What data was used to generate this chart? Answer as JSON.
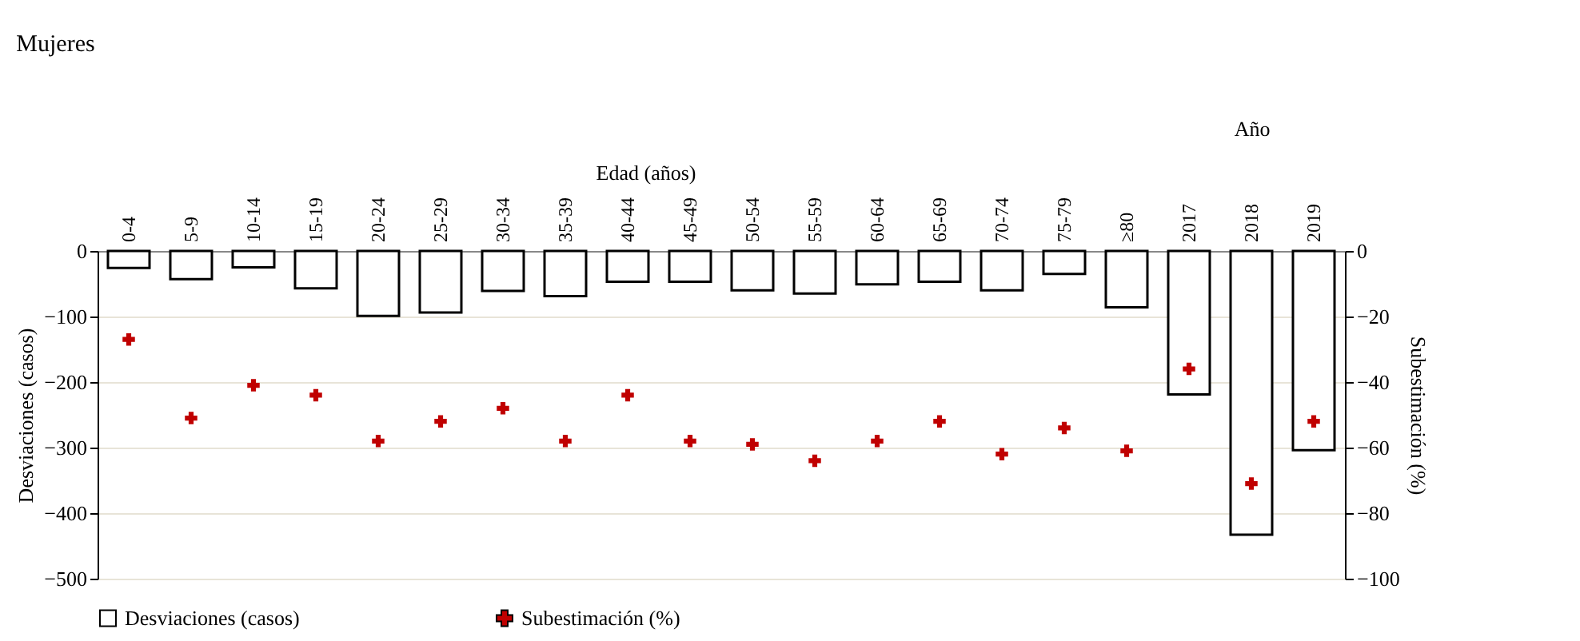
{
  "chart_data": {
    "type": "bar",
    "title": "Mujeres",
    "ylabel": "Desviaciones (casos)",
    "y2label": "Subestimación (%)",
    "categories": [
      "0-4",
      "5-9",
      "10-14",
      "15-19",
      "20-24",
      "25-29",
      "30-34",
      "35-39",
      "40-44",
      "45-49",
      "50-54",
      "55-59",
      "60-64",
      "65-69",
      "70-74",
      "75-79",
      "≥80",
      "2017",
      "2018",
      "2019"
    ],
    "series": [
      {
        "name": "Desviaciones (casos)",
        "color": "#ffffff",
        "values": [
          -26,
          -43,
          -25,
          -57,
          -99,
          -94,
          -61,
          -69,
          -47,
          -47,
          -60,
          -65,
          -51,
          -47,
          -60,
          -35,
          -86,
          -219,
          -433,
          -304
        ]
      },
      {
        "name": "Subestimación (%)",
        "type": "scatter",
        "axis": "y2",
        "color": "#c00000",
        "marker": "cross",
        "values": [
          -27,
          -51,
          -41,
          -44,
          -58,
          -52,
          -48,
          -58,
          -44,
          -58,
          -59,
          -64,
          -58,
          -52,
          -62,
          -54,
          -61,
          -36,
          -71,
          -52
        ]
      }
    ],
    "ylim": [
      -500,
      0
    ],
    "yticks": [
      -500,
      -400,
      -300,
      -200,
      -100,
      0
    ],
    "y2lim": [
      -100,
      0
    ],
    "y2ticks": [
      -100,
      -80,
      -60,
      -40,
      -20,
      0
    ],
    "xlabel": "Edad (años)",
    "annotations": [
      "Año"
    ],
    "grid": "y",
    "legend": "bottom"
  }
}
